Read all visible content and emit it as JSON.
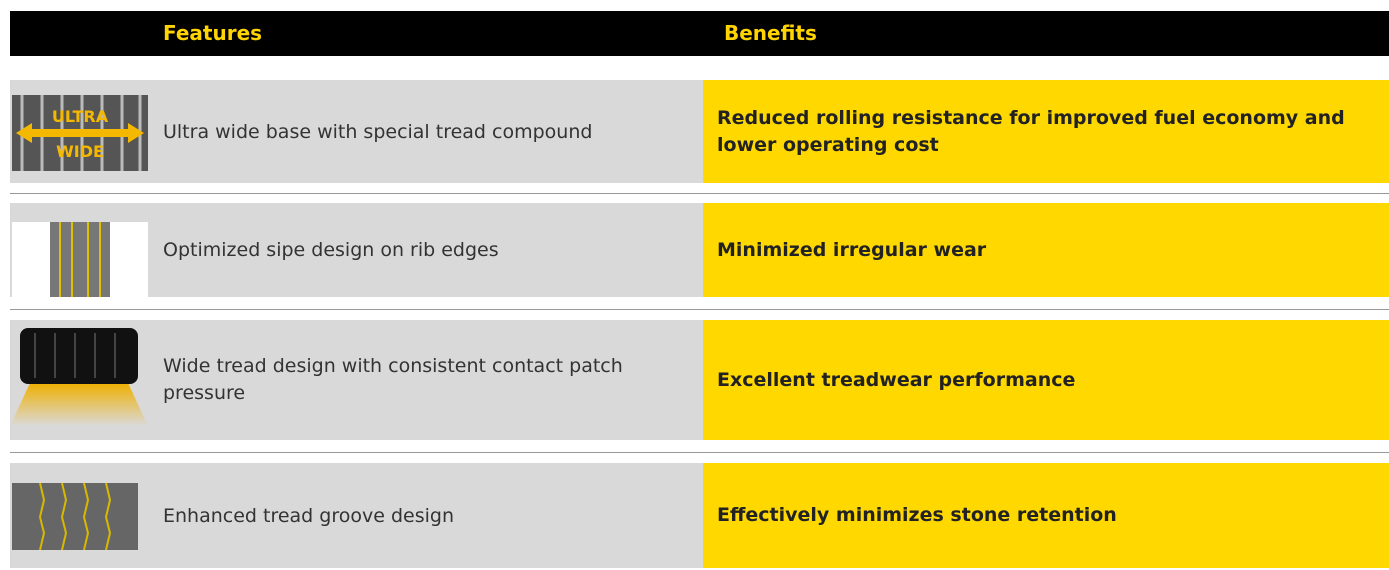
{
  "header": {
    "features": "Features",
    "benefits": "Benefits"
  },
  "rows": [
    {
      "icon_text": [
        "ULTRA",
        "WIDE"
      ],
      "feature": "Ultra wide base with special tread compound",
      "benefit": "Reduced rolling resistance for improved fuel economy and lower operating cost"
    },
    {
      "feature": "Optimized sipe design on rib edges",
      "benefit": "Minimized irregular wear"
    },
    {
      "feature": "Wide tread design with consistent contact patch pressure",
      "benefit": "Excellent treadwear performance"
    },
    {
      "feature": "Enhanced tread groove design",
      "benefit": "Effectively minimizes stone retention"
    }
  ]
}
